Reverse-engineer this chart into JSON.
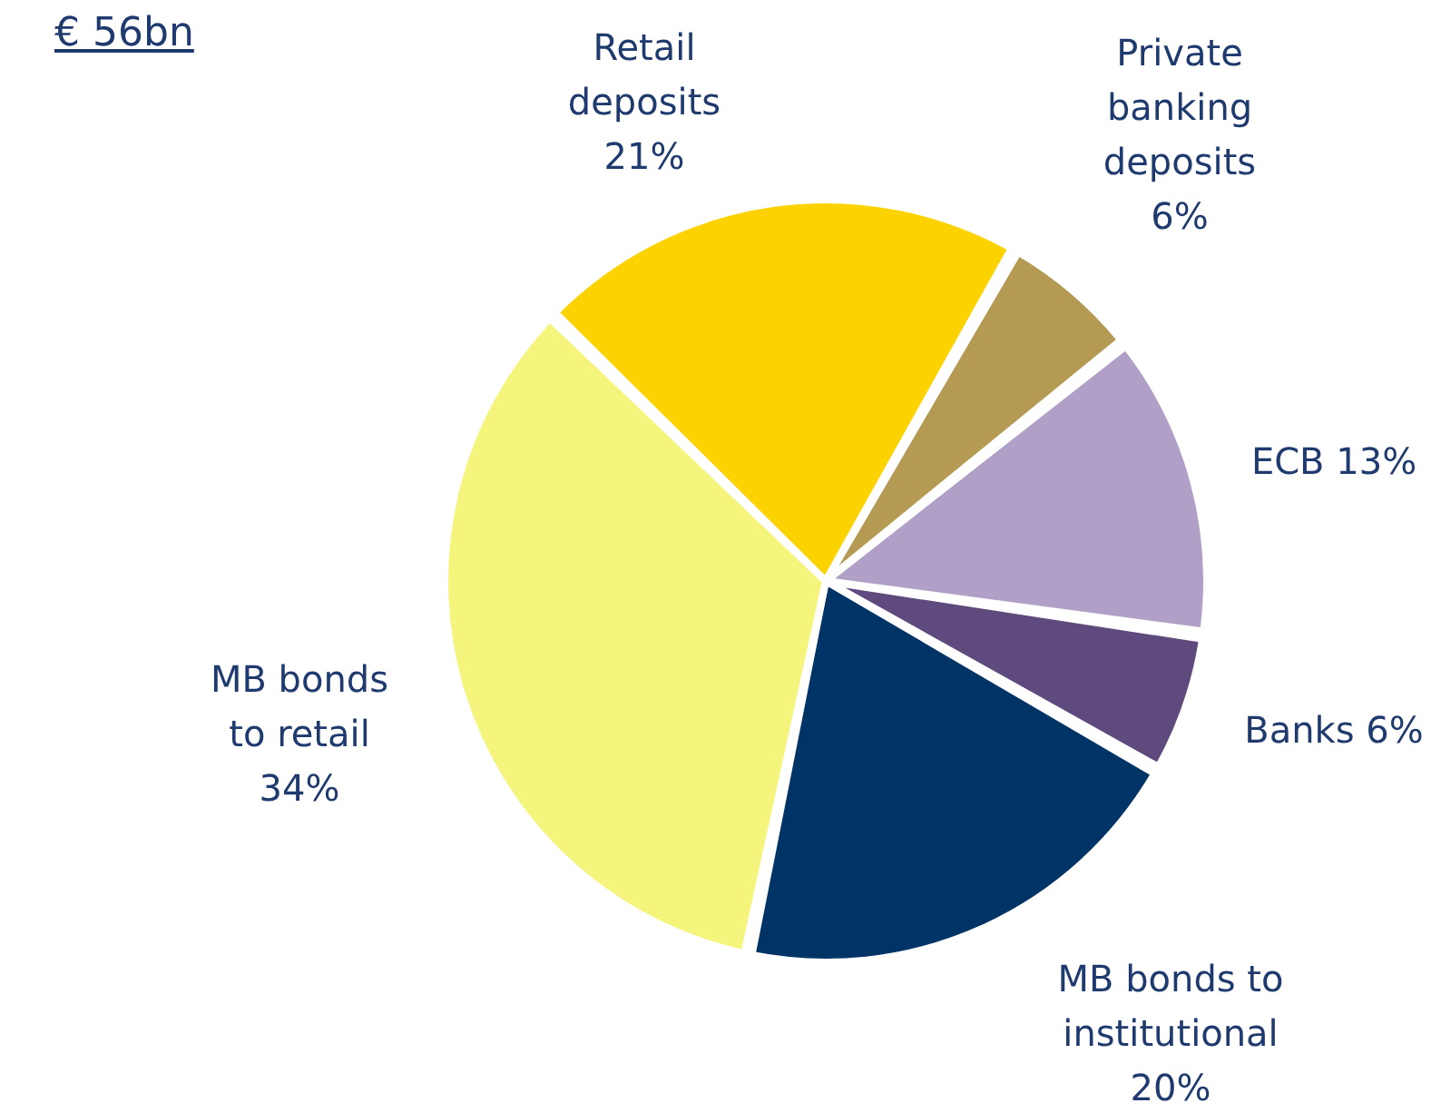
{
  "chart_data": {
    "type": "pie",
    "title": "€ 56bn",
    "categories": [
      "Retail deposits",
      "Private banking deposits",
      "ECB",
      "Banks",
      "MB bonds to institutional",
      "MB bonds to retail"
    ],
    "values": [
      21,
      6,
      13,
      6,
      20,
      34
    ],
    "value_labels": [
      "21%",
      "6%",
      "13%",
      "6%",
      "20%",
      "34%"
    ],
    "colors": [
      "#fcd300",
      "#b49a52",
      "#b0a0c8",
      "#5e4a7c",
      "#003366",
      "#f5f57e"
    ]
  }
}
